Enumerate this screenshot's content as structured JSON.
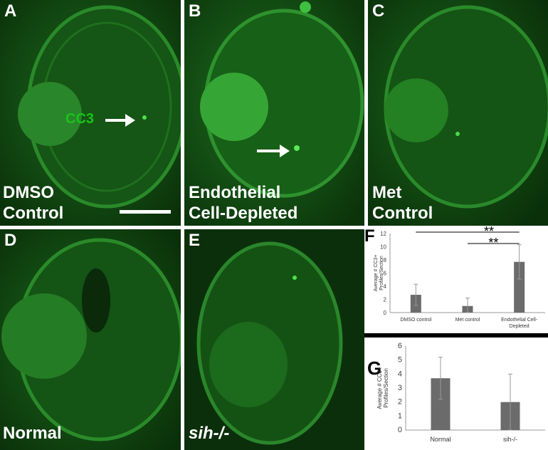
{
  "panels": [
    {
      "id": "A",
      "lines": [
        "DMSO",
        "Control"
      ]
    },
    {
      "id": "B",
      "lines": [
        "Endothelial",
        "Cell-Depleted"
      ]
    },
    {
      "id": "C",
      "lines": [
        "Met",
        "Control"
      ]
    },
    {
      "id": "D",
      "lines": [
        "Normal"
      ]
    },
    {
      "id": "E",
      "lines": [
        "sih-/-"
      ]
    }
  ],
  "cc3_annotation": "CC3",
  "colors": {
    "fluorescence": "#22c022",
    "bar": "#6b6b6b"
  },
  "chart_data": [
    {
      "panel": "F",
      "type": "bar",
      "categories": [
        "DMSO control",
        "Met control",
        "Endothelial Cell-Depleted"
      ],
      "values": [
        2.7,
        1.0,
        7.7
      ],
      "errors": [
        1.6,
        1.2,
        2.6
      ],
      "ylabel": "Average # CC3+ Profiles/Section",
      "ylim": [
        0,
        12
      ],
      "yticks": [
        0,
        2,
        4,
        6,
        8,
        10,
        12
      ],
      "significance": [
        "**",
        "**"
      ]
    },
    {
      "panel": "G",
      "type": "bar",
      "categories": [
        "Normal",
        "sih-/-"
      ],
      "values": [
        3.7,
        2.0
      ],
      "errors": [
        1.5,
        2.0
      ],
      "ylabel": "Average # CC3+ Profiles/Section",
      "ylim": [
        0,
        6
      ],
      "yticks": [
        0,
        1,
        2,
        3,
        4,
        5,
        6
      ]
    }
  ]
}
